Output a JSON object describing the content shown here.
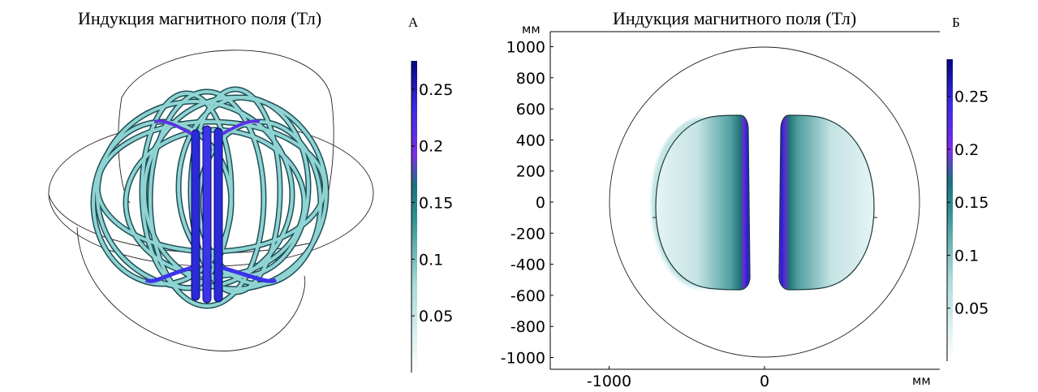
{
  "panel_a": {
    "title": "Индукция магнитного поля (Тл)",
    "letter": "А",
    "colorbar": {
      "ticks": [
        "0.05",
        "0.1",
        "0.15",
        "0.2",
        "0.25"
      ],
      "max": 0.275
    }
  },
  "panel_b": {
    "title": "Индукция магнитного поля (Тл)",
    "letter": "Б",
    "y_unit": "мм",
    "x_unit": "мм",
    "y_ticks": [
      "1000",
      "800",
      "600",
      "400",
      "200",
      "0",
      "-200",
      "-400",
      "-600",
      "-800",
      "-1000"
    ],
    "x_ticks": [
      "-1000",
      "0"
    ],
    "colorbar": {
      "ticks": [
        "0.05",
        "0.1",
        "0.15",
        "0.2",
        "0.25"
      ],
      "max": 0.285
    }
  },
  "colors": {
    "coil_light": "#8fd3d3",
    "coil_mid": "#3a9a9a",
    "coil_dark": "#1f5f66",
    "field_low": "#ffffff",
    "field_mid": "#2f8f8f",
    "field_high": "#6a1be8",
    "field_max": "#0a0a8a"
  }
}
